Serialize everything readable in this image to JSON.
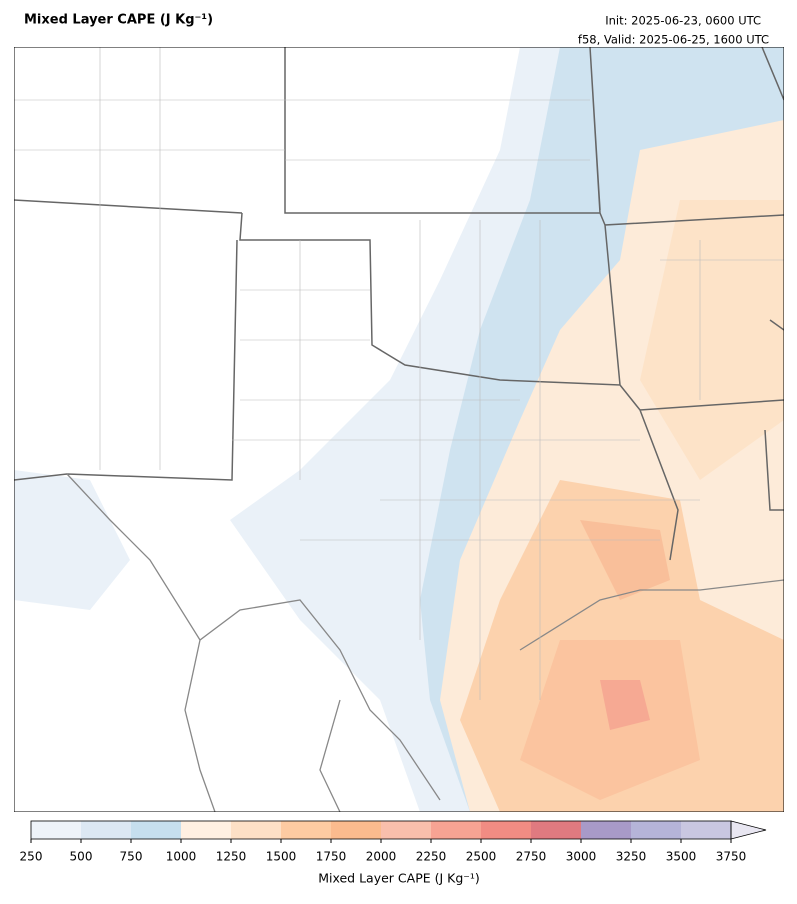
{
  "header": {
    "title": "Mixed Layer CAPE (J Kg⁻¹)",
    "init": "Init: 2025-06-23, 0600 UTC",
    "valid": "f58, Valid: 2025-06-25, 1600 UTC"
  },
  "colorbar": {
    "label": "Mixed Layer CAPE (J Kg⁻¹)",
    "ticks": [
      250,
      500,
      750,
      1000,
      1250,
      1500,
      1750,
      2000,
      2250,
      2500,
      2750,
      3000,
      3250,
      3500,
      3750
    ],
    "colors": [
      "#eef3f9",
      "#dce8f3",
      "#c6dfee",
      "#fff0e2",
      "#fde0c6",
      "#fdcba2",
      "#fbbb8e",
      "#f9bfac",
      "#f7a393",
      "#f18c83",
      "#e07a80",
      "#a89ac8",
      "#b5b4d8",
      "#c9c7e1"
    ],
    "extend_color": "#e8e6f1"
  }
}
